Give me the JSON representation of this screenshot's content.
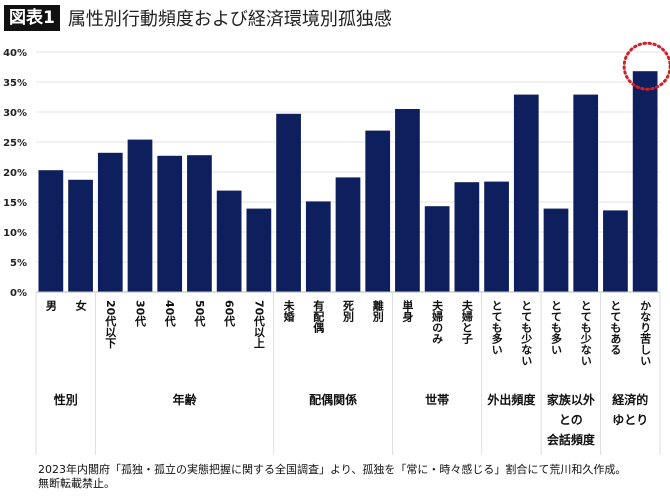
{
  "header": {
    "badge": "図表1",
    "title": "属性別行動頻度および経済環境別孤独感"
  },
  "footnote": [
    "2023年内閣府「孤独・孤立の実態把握に関する全国調査」より、孤独を「常に・時々感じる」割合にて荒川和久作成。",
    "無断転載禁止。"
  ],
  "colors": {
    "bar": "#0d1f5c",
    "highlight": "#d0202a",
    "grid": "#e3e3e3"
  },
  "chart_data": {
    "type": "bar",
    "ylim": [
      0,
      40
    ],
    "yticks": [
      "0%",
      "5%",
      "10%",
      "15%",
      "20%",
      "25%",
      "30%",
      "35%",
      "40%"
    ],
    "grid": true,
    "categories": [
      "男",
      "女",
      "20代以下",
      "30代",
      "40代",
      "50代",
      "60代",
      "70代以上",
      "未婚",
      "有配偶",
      "死別",
      "離別",
      "単身",
      "夫婦のみ",
      "夫婦と子",
      "とても多い",
      "とても少ない",
      "とても多い",
      "とても少ない",
      "とてもある",
      "かなり苦しい"
    ],
    "values": [
      20.3,
      18.7,
      23.2,
      25.4,
      22.7,
      22.8,
      16.9,
      13.9,
      29.7,
      15.1,
      19.1,
      26.9,
      30.5,
      14.3,
      18.3,
      18.4,
      32.9,
      13.9,
      32.9,
      13.6,
      36.8
    ],
    "groups": [
      {
        "label": [
          "性別"
        ],
        "count": 2
      },
      {
        "label": [
          "年齢"
        ],
        "count": 6
      },
      {
        "label": [
          "配偶関係"
        ],
        "count": 4
      },
      {
        "label": [
          "世帯"
        ],
        "count": 3
      },
      {
        "label": [
          "外出頻度"
        ],
        "count": 2
      },
      {
        "label": [
          "家族以外",
          "との",
          "会話頻度"
        ],
        "count": 2
      },
      {
        "label": [
          "経済的",
          "ゆとり"
        ],
        "count": 2
      }
    ],
    "highlight_index": 20,
    "highlight_style": "dotted-circle"
  }
}
